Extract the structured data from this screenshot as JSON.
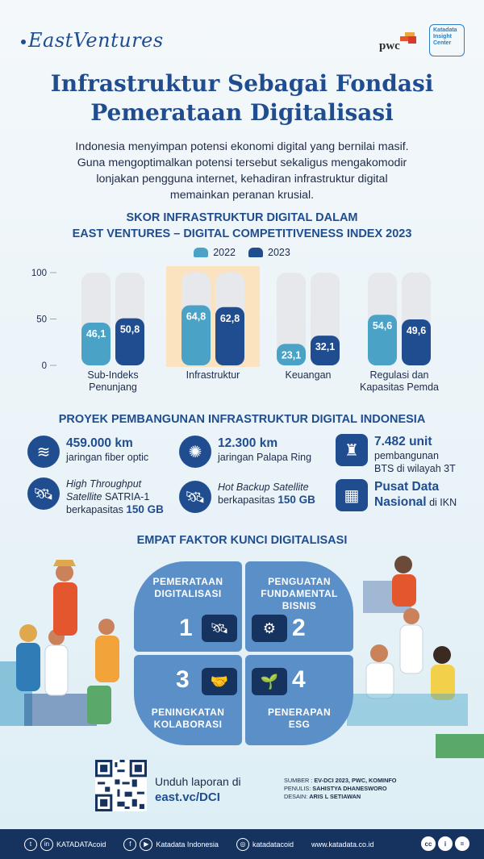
{
  "header": {
    "brand_left": "EastVentures",
    "brand_pwc": "pwc",
    "brand_katadata": [
      "Katadata",
      "Insight",
      "Center"
    ]
  },
  "title_lines": [
    "Infrastruktur Sebagai Fondasi",
    "Pemerataan Digitalisasi"
  ],
  "intro_lines": [
    "Indonesia menyimpan potensi ekonomi digital yang bernilai masif.",
    "Guna mengoptimalkan potensi tersebut sekaligus mengakomodir",
    "lonjakan pengguna internet, kehadiran infrastruktur digital",
    "memainkan peranan krusial."
  ],
  "chart_section_title": [
    "SKOR INFRASTRUKTUR DIGITAL DALAM",
    "EAST VENTURES – DIGITAL COMPETITIVENESS INDEX 2023"
  ],
  "chart_data": {
    "type": "bar",
    "title": "SKOR INFRASTRUKTUR DIGITAL DALAM EAST VENTURES – DIGITAL COMPETITIVENESS INDEX 2023",
    "categories": [
      [
        "Sub-Indeks",
        "Penunjang"
      ],
      [
        "Infrastruktur"
      ],
      [
        "Keuangan"
      ],
      [
        "Regulasi dan",
        "Kapasitas Pemda"
      ]
    ],
    "series": [
      {
        "name": "2022",
        "values": [
          46.1,
          64.8,
          23.1,
          54.6
        ],
        "labels": [
          "46,1",
          "64,8",
          "23,1",
          "54,6"
        ],
        "color": "#4aa3c7"
      },
      {
        "name": "2023",
        "values": [
          50.8,
          62.8,
          32.1,
          49.6
        ],
        "labels": [
          "50,8",
          "62,8",
          "32,1",
          "49,6"
        ],
        "color": "#1f4d8f"
      }
    ],
    "yticks": [
      0,
      50,
      100
    ],
    "ylim": [
      0,
      100
    ],
    "highlight_category": 1,
    "highlight_color": "#fbe3c0",
    "track_color": "#e6e8ec",
    "legend_position": "top-center"
  },
  "projects_title": "PROYEK PEMBANGUNAN INFRASTRUKTUR DIGITAL INDONESIA",
  "projects": [
    {
      "icon": "fiber-optic-icon",
      "glyph": "≋",
      "big": "459.000 km",
      "small": "jaringan fiber optic"
    },
    {
      "icon": "network-ring-icon",
      "glyph": "✺",
      "big": "12.300 km",
      "small": "jaringan Palapa Ring"
    },
    {
      "icon": "bts-tower-icon",
      "glyph": "♜",
      "big": "7.482 unit",
      "small": "pembangunan",
      "small2": "BTS di wilayah 3T"
    },
    {
      "icon": "satellite-icon",
      "glyph": "🛰",
      "italic1": "High Throughput",
      "italic2": "Satellite",
      "plain2": " SATRIA-1",
      "plain3": "berkapasitas ",
      "bold3": "150 GB"
    },
    {
      "icon": "backup-satellite-icon",
      "glyph": "🛰",
      "italic1": "Hot Backup Satellite",
      "plain2": "berkapasitas ",
      "bold2": "150 GB"
    },
    {
      "icon": "data-center-icon",
      "glyph": "▦",
      "big1": "Pusat Data",
      "big2": "Nasional",
      "small_tail": " di IKN"
    }
  ],
  "factors_title": "EMPAT FAKTOR KUNCI DIGITALISASI",
  "factors": [
    {
      "num": "1",
      "label": [
        "PEMERATAAN",
        "DIGITALISASI"
      ],
      "icon": "satellite-icon",
      "glyph": "🛰"
    },
    {
      "num": "2",
      "label": [
        "PENGUATAN",
        "FUNDAMENTAL",
        "BISNIS"
      ],
      "icon": "gears-icon",
      "glyph": "⚙"
    },
    {
      "num": "3",
      "label": [
        "PENINGKATAN",
        "KOLABORASI"
      ],
      "icon": "handshake-icon",
      "glyph": "🤝"
    },
    {
      "num": "4",
      "label": [
        "PENERAPAN",
        "ESG"
      ],
      "icon": "plant-icon",
      "glyph": "🌱"
    }
  ],
  "download": {
    "text": "Unduh laporan di",
    "url": "east.vc/DCI"
  },
  "credits": [
    {
      "k": "SUMBER : ",
      "v": "EV-DCI 2023, PWC, KOMINFO"
    },
    {
      "k": "PENULIS: ",
      "v": "SAHISTYA DHANESWORO"
    },
    {
      "k": "DESAIN: ",
      "v": "ARIS L SETIAWAN"
    }
  ],
  "footer": {
    "handle1": "KATADATAcoid",
    "handle2": "Katadata Indonesia",
    "handle3": "katadatacoid",
    "site": "www.katadata.co.id"
  },
  "colors": {
    "primary": "#1f4d8f",
    "accent": "#4aa3c7",
    "dark": "#16335f",
    "factor": "#5a8fc8"
  }
}
